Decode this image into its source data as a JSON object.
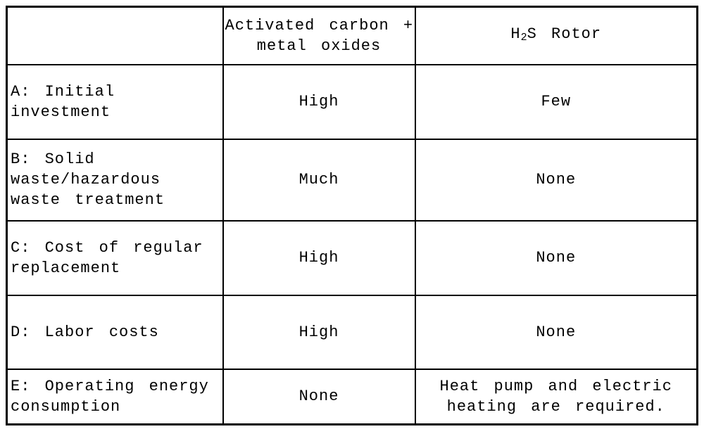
{
  "table": {
    "border_color": "#000000",
    "background_color": "#ffffff",
    "text_color": "#000000",
    "header": {
      "col1": "",
      "activated_carbon": "Activated carbon +\nmetal oxides",
      "h2s_rotor": {
        "prefix": "H",
        "subscript": "2",
        "suffix": "S Rotor"
      }
    },
    "columns": [
      "",
      "Activated carbon + metal oxides",
      "H2S Rotor"
    ],
    "rows": [
      {
        "label": "A: Initial\ninvestment",
        "activated_carbon": "High",
        "h2s_rotor": "Few"
      },
      {
        "label": "B: Solid\nwaste/hazardous\nwaste treatment",
        "activated_carbon": "Much",
        "h2s_rotor": "None"
      },
      {
        "label": "C: Cost of regular\nreplacement",
        "activated_carbon": "High",
        "h2s_rotor": "None"
      },
      {
        "label": "D: Labor costs",
        "activated_carbon": "High",
        "h2s_rotor": "None"
      },
      {
        "label": "E: Operating energy\nconsumption",
        "activated_carbon": "None",
        "h2s_rotor": "Heat pump and electric\nheating are required."
      }
    ]
  }
}
